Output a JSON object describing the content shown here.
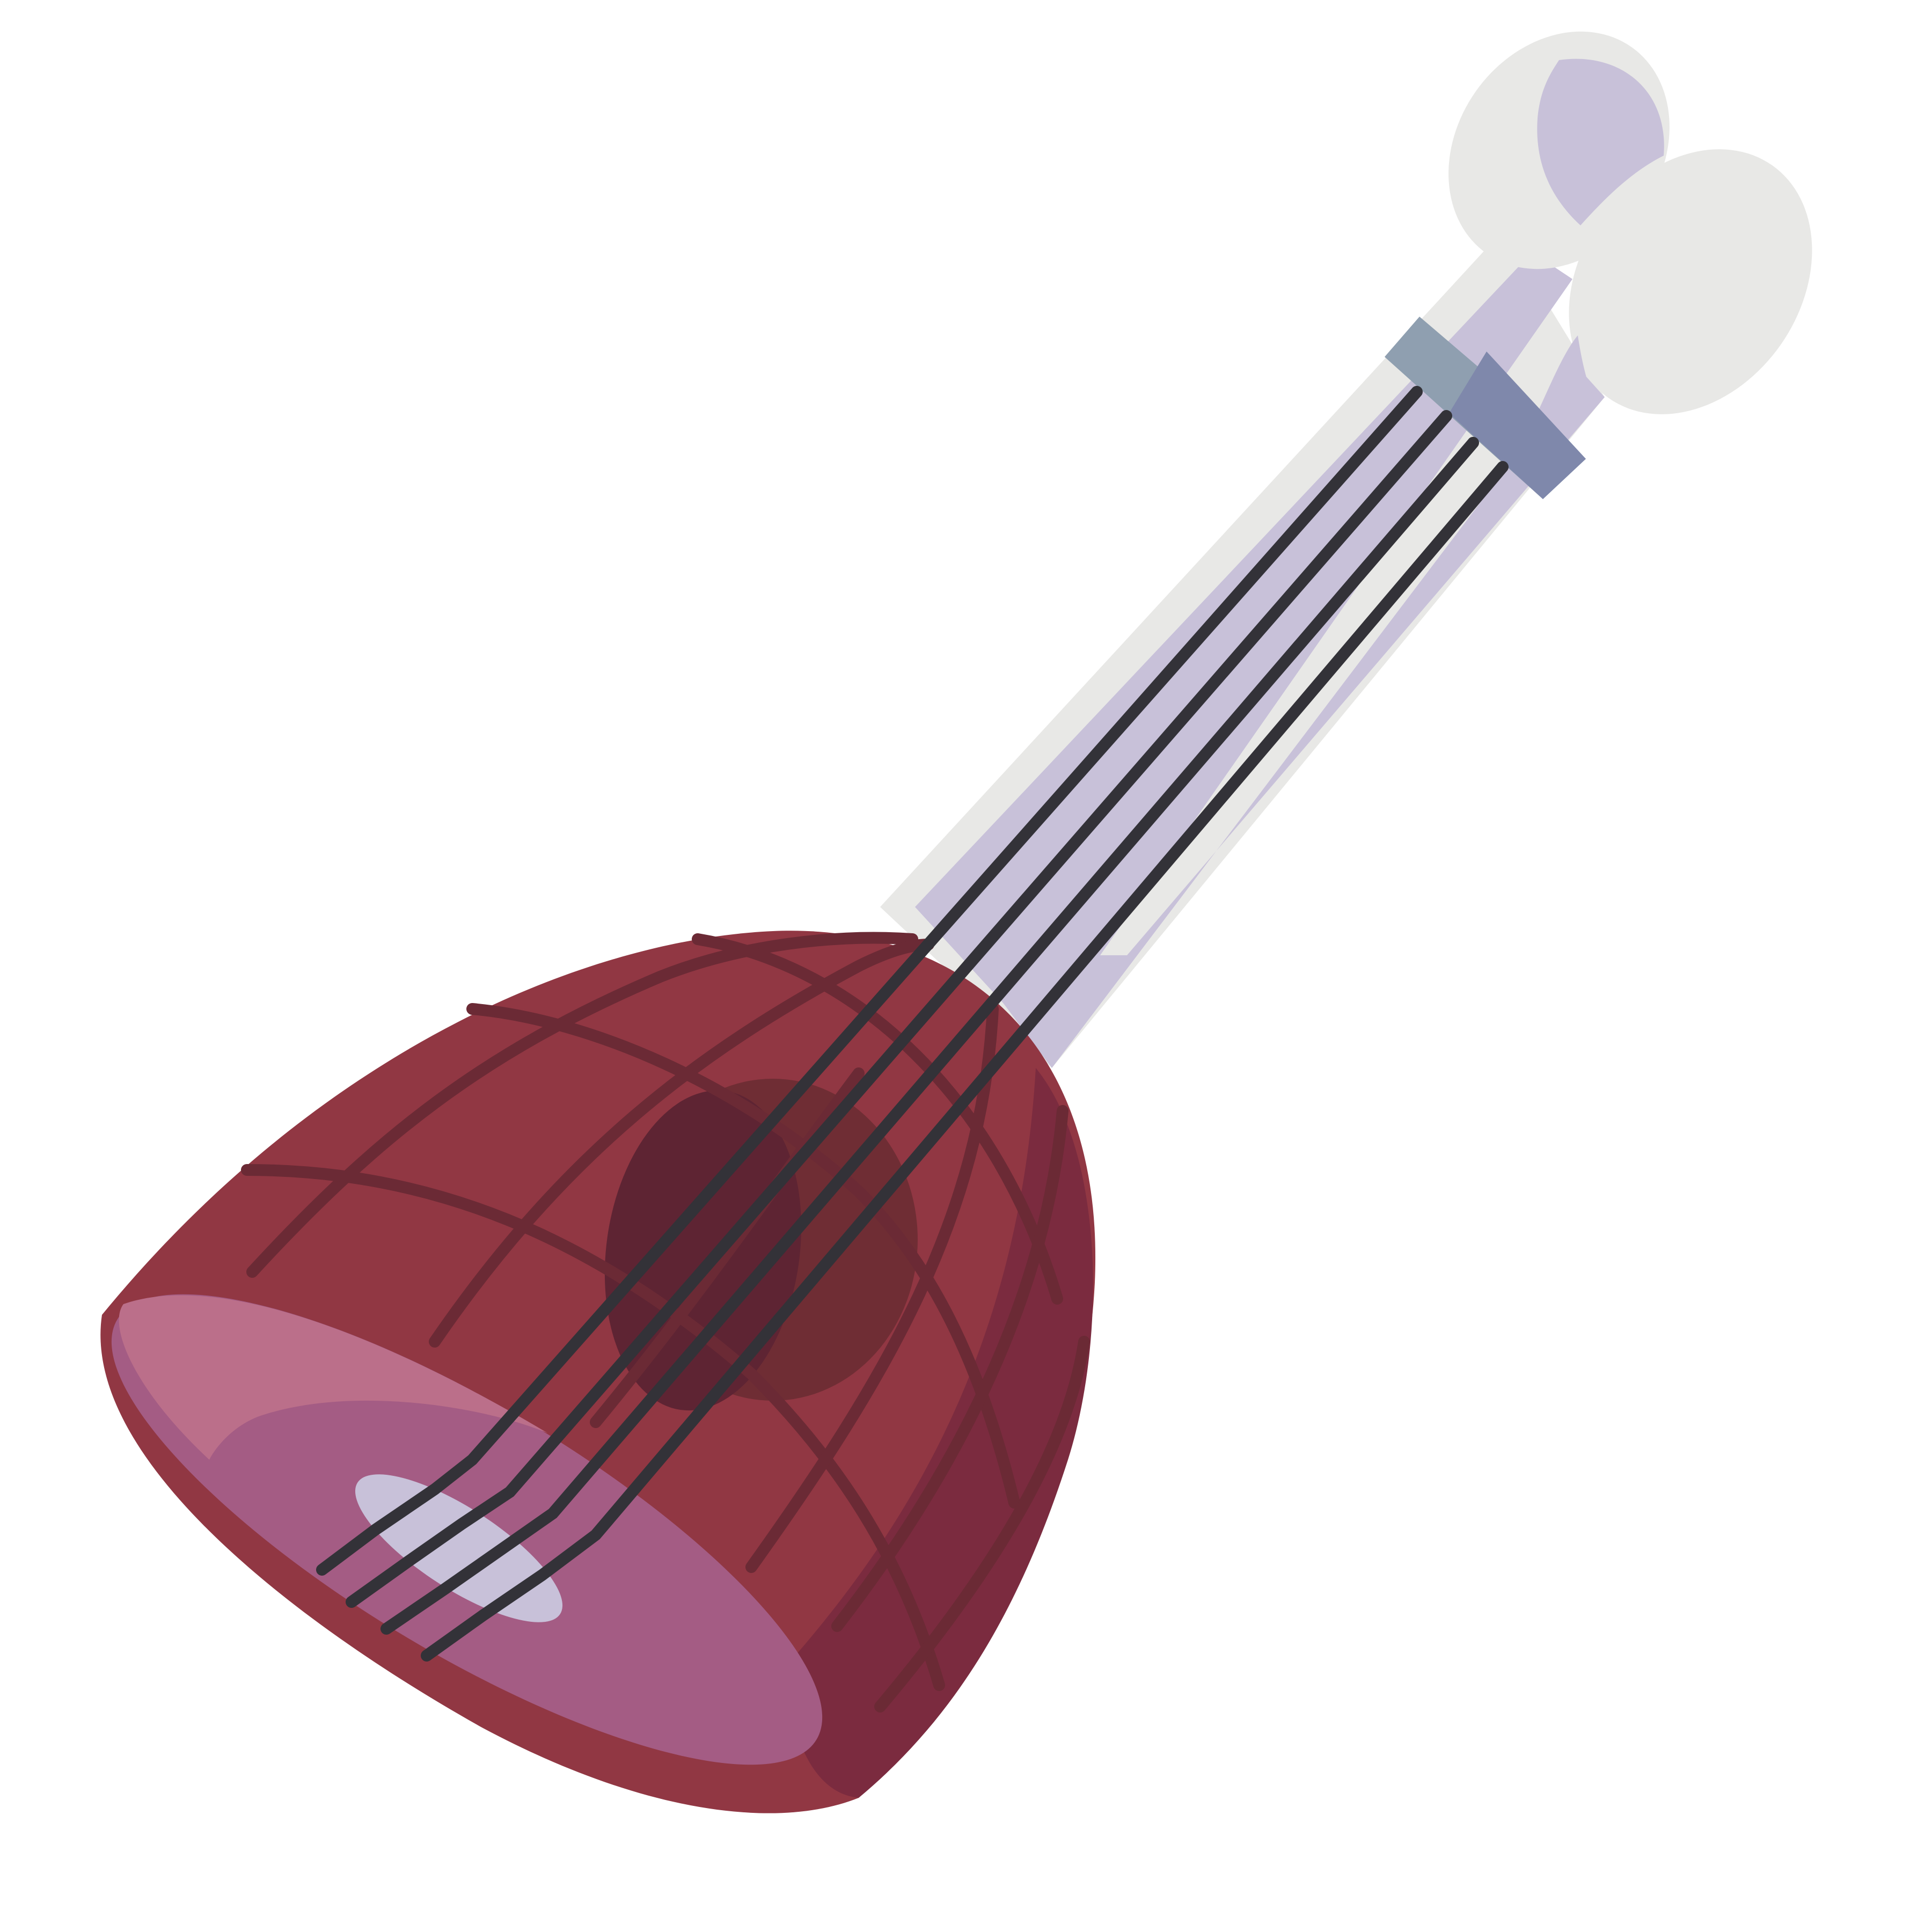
{
  "illustration": {
    "subject": "ham-bone-lute-icon",
    "background": "#ffffff",
    "colors": {
      "bone": "#e8e8e6",
      "bone_shadow": "#c8c1d9",
      "meat": "#913743",
      "meat_dark": "#7b2b3f",
      "meat_lines": "#6b2a35",
      "cut_face": "#a45c84",
      "cut_face_highlight": "#bb6f8a",
      "marrow": "#c8c1d9",
      "sound_hole": "#5e2433",
      "sound_hole_ring": "#6f2d34",
      "strings": "#333238",
      "nut": "#8f9fb0",
      "nut_shadow": "#7f88ab"
    },
    "strings_count": 4
  }
}
